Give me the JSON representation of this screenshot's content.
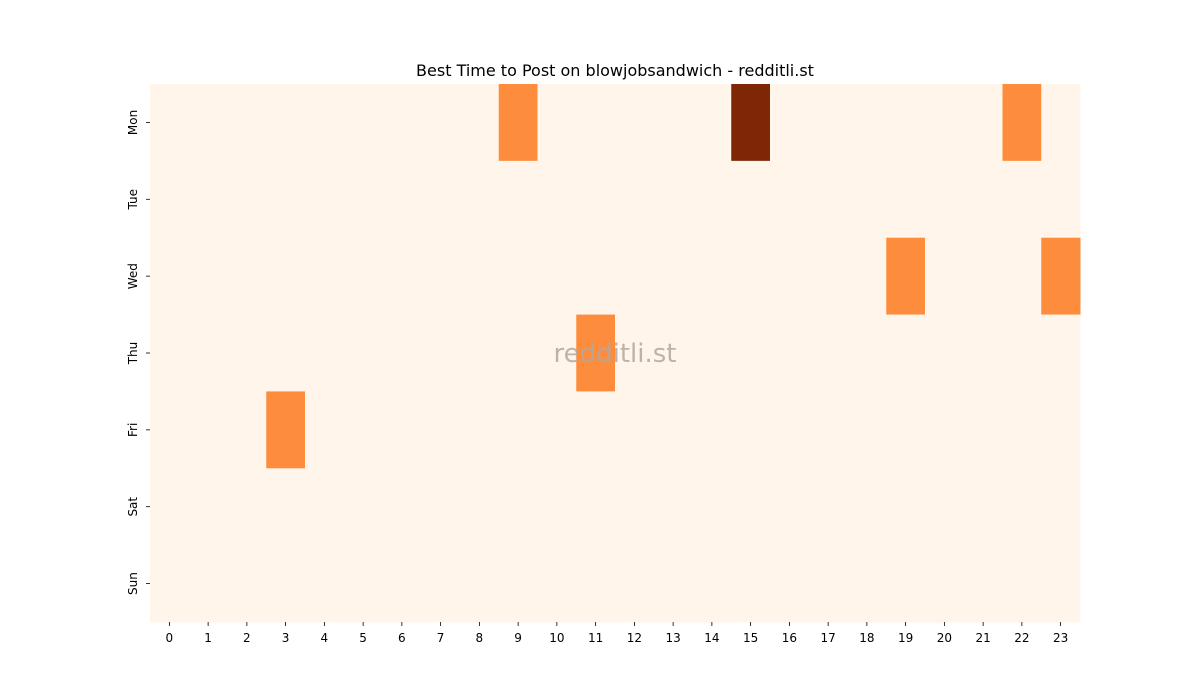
{
  "chart_data": {
    "type": "heatmap",
    "title": "Best Time to Post on blowjobsandwich - redditli.st",
    "xlabel": "",
    "ylabel": "",
    "x_categories": [
      "0",
      "1",
      "2",
      "3",
      "4",
      "5",
      "6",
      "7",
      "8",
      "9",
      "10",
      "11",
      "12",
      "13",
      "14",
      "15",
      "16",
      "17",
      "18",
      "19",
      "20",
      "21",
      "22",
      "23"
    ],
    "y_categories": [
      "Mon",
      "Tue",
      "Wed",
      "Thu",
      "Fri",
      "Sat",
      "Sun"
    ],
    "values": [
      [
        0,
        0,
        0,
        0,
        0,
        0,
        0,
        0,
        0,
        1,
        0,
        0,
        0,
        0,
        0,
        2,
        0,
        0,
        0,
        0,
        0,
        0,
        1,
        0
      ],
      [
        0,
        0,
        0,
        0,
        0,
        0,
        0,
        0,
        0,
        0,
        0,
        0,
        0,
        0,
        0,
        0,
        0,
        0,
        0,
        0,
        0,
        0,
        0,
        0
      ],
      [
        0,
        0,
        0,
        0,
        0,
        0,
        0,
        0,
        0,
        0,
        0,
        0,
        0,
        0,
        0,
        0,
        0,
        0,
        0,
        1,
        0,
        0,
        0,
        1
      ],
      [
        0,
        0,
        0,
        0,
        0,
        0,
        0,
        0,
        0,
        0,
        0,
        1,
        0,
        0,
        0,
        0,
        0,
        0,
        0,
        0,
        0,
        0,
        0,
        0
      ],
      [
        0,
        0,
        0,
        1,
        0,
        0,
        0,
        0,
        0,
        0,
        0,
        0,
        0,
        0,
        0,
        0,
        0,
        0,
        0,
        0,
        0,
        0,
        0,
        0
      ],
      [
        0,
        0,
        0,
        0,
        0,
        0,
        0,
        0,
        0,
        0,
        0,
        0,
        0,
        0,
        0,
        0,
        0,
        0,
        0,
        0,
        0,
        0,
        0,
        0
      ],
      [
        0,
        0,
        0,
        0,
        0,
        0,
        0,
        0,
        0,
        0,
        0,
        0,
        0,
        0,
        0,
        0,
        0,
        0,
        0,
        0,
        0,
        0,
        0,
        0
      ]
    ],
    "value_range": [
      0,
      2
    ],
    "colormap": "Oranges",
    "color_scale": [
      "#fff5eb",
      "#fd8d3c",
      "#7f2704"
    ],
    "watermark": "redditli.st",
    "grid": false,
    "legend": "none"
  }
}
